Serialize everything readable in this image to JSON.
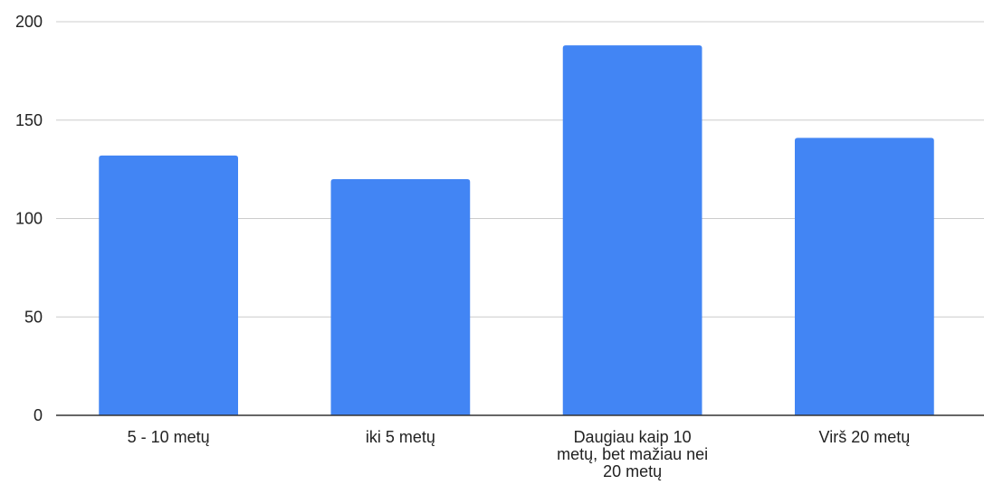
{
  "chart_data": {
    "type": "bar",
    "categories": [
      [
        "5 - 10 metų"
      ],
      [
        "iki 5 metų"
      ],
      [
        "Daugiau kaip 10",
        "metų, bet mažiau nei",
        "20 metų"
      ],
      [
        "Virš 20 metų"
      ]
    ],
    "values": [
      132,
      120,
      188,
      141
    ],
    "ylim": [
      0,
      200
    ],
    "yticks": [
      0,
      50,
      100,
      150,
      200
    ],
    "grid": true,
    "bar_color": "#4285f4",
    "title": "",
    "xlabel": "",
    "ylabel": ""
  }
}
